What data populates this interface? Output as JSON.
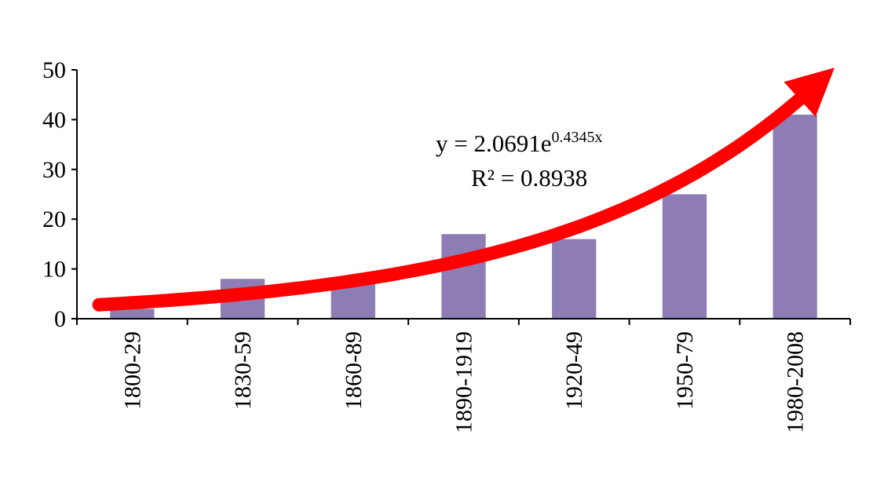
{
  "chart_data": {
    "type": "bar",
    "categories": [
      "1800-29",
      "1830-59",
      "1860-89",
      "1890-1919",
      "1920-49",
      "1950-79",
      "1980-2008"
    ],
    "values": [
      2,
      8,
      7,
      17,
      16,
      25,
      41
    ],
    "ylim": [
      0,
      50
    ],
    "yticks": [
      0,
      10,
      20,
      30,
      40,
      50
    ],
    "grid": false,
    "bar_color": "#8e7cb4",
    "trendline": {
      "type": "exponential",
      "coefficient": 2.0691,
      "exponent": 0.4345,
      "color": "#ff0000",
      "equation_text": "y = 2.0691e",
      "exponent_text": "0.4345x",
      "r_squared_text": "R² = 0.8938"
    }
  }
}
